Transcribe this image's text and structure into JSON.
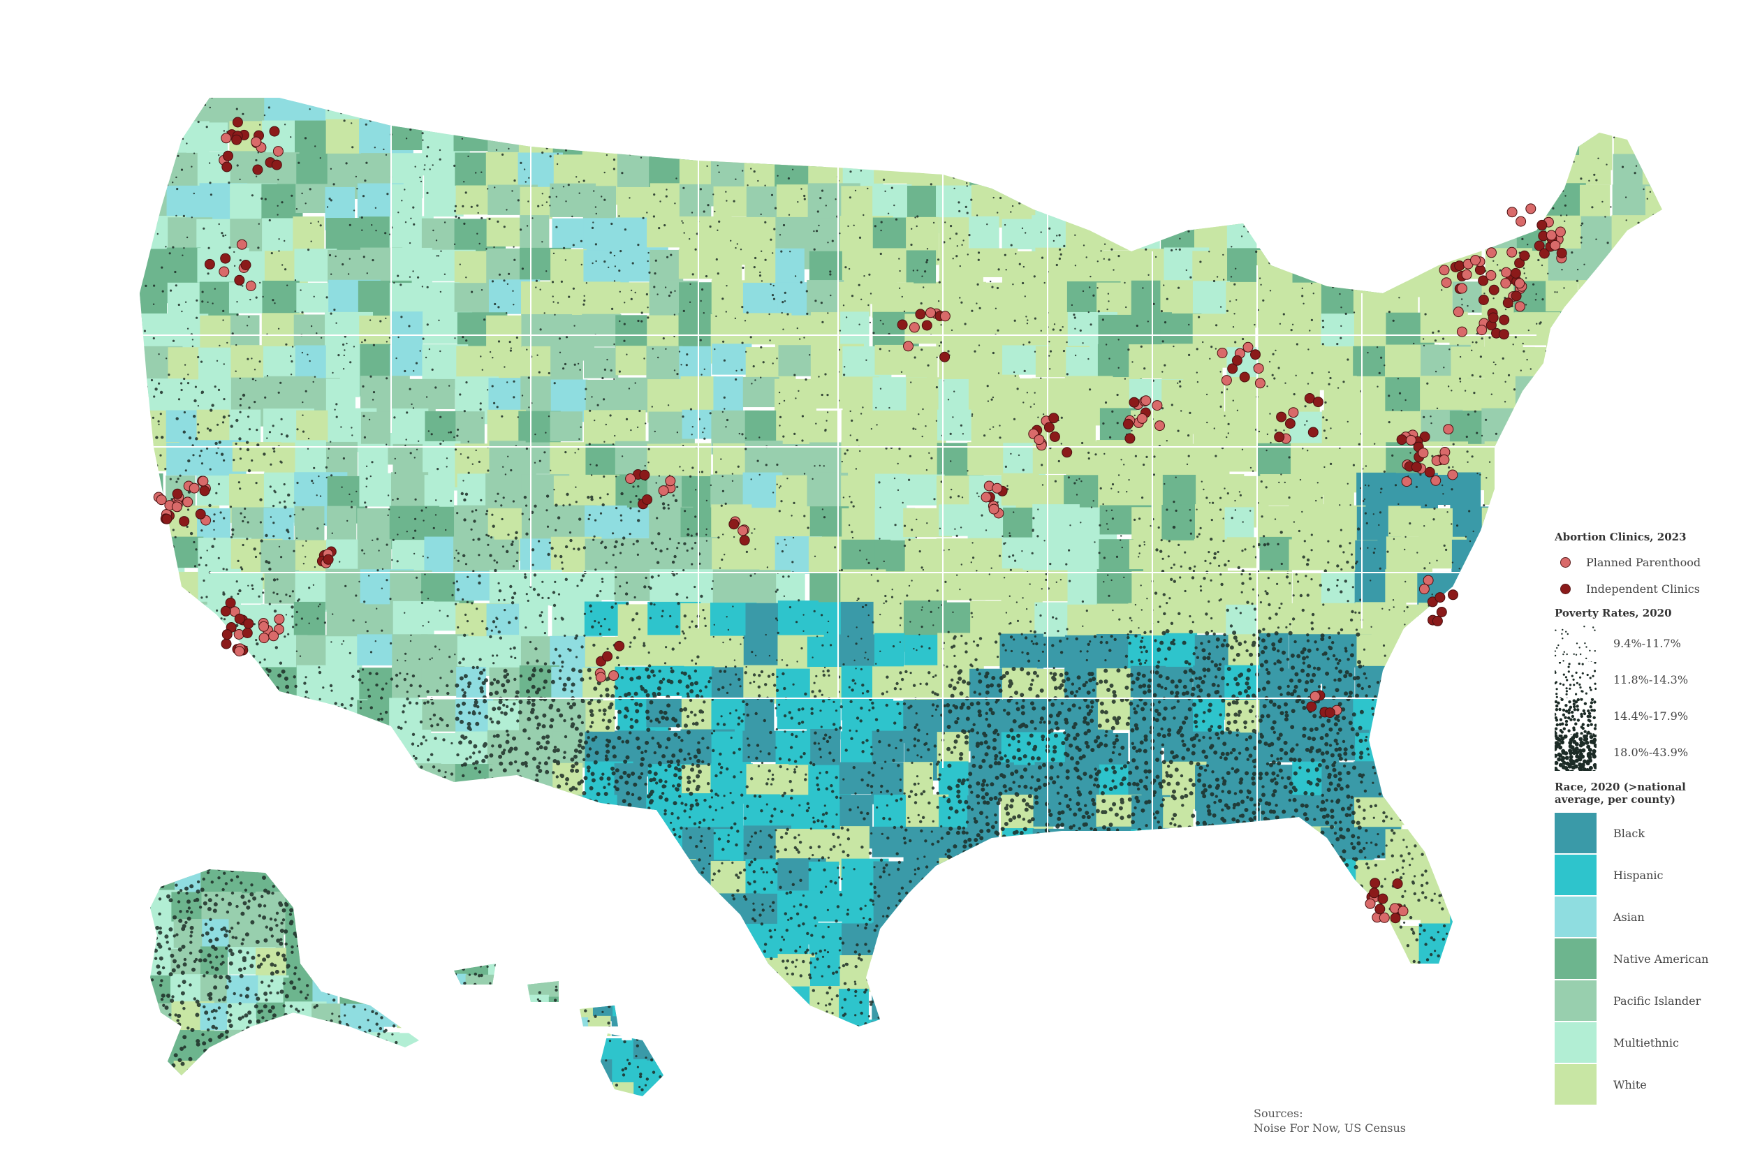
{
  "legend": {
    "clinics": {
      "title": "Abortion Clinics, 2023",
      "items": [
        {
          "label": "Planned Parenthood",
          "color": "#d96a6a"
        },
        {
          "label": "Independent Clinics",
          "color": "#8b1a1a"
        }
      ]
    },
    "poverty": {
      "title": "Poverty Rates, 2020",
      "items": [
        {
          "label": "9.4%-11.7%",
          "density": 0.12,
          "size": 1.2
        },
        {
          "label": "11.8%-14.3%",
          "density": 0.25,
          "size": 1.6
        },
        {
          "label": "14.4%-17.9%",
          "density": 0.45,
          "size": 2.2
        },
        {
          "label": "18.0%-43.9%",
          "density": 0.7,
          "size": 3.0
        }
      ]
    },
    "race": {
      "title": "Race, 2020 (>national average, per county)",
      "items": [
        {
          "label": "Black",
          "color": "#3a9aa8"
        },
        {
          "label": "Hispanic",
          "color": "#2ec4cc"
        },
        {
          "label": "Asian",
          "color": "#8fdde0"
        },
        {
          "label": "Native American",
          "color": "#6db58e"
        },
        {
          "label": "Pacific Islander",
          "color": "#98cfae"
        },
        {
          "label": "Multiethnic",
          "color": "#b2eed4"
        },
        {
          "label": "White",
          "color": "#c8e6a4"
        }
      ]
    }
  },
  "sources": {
    "label": "Sources:",
    "text": "Noise For Now, US Census"
  }
}
